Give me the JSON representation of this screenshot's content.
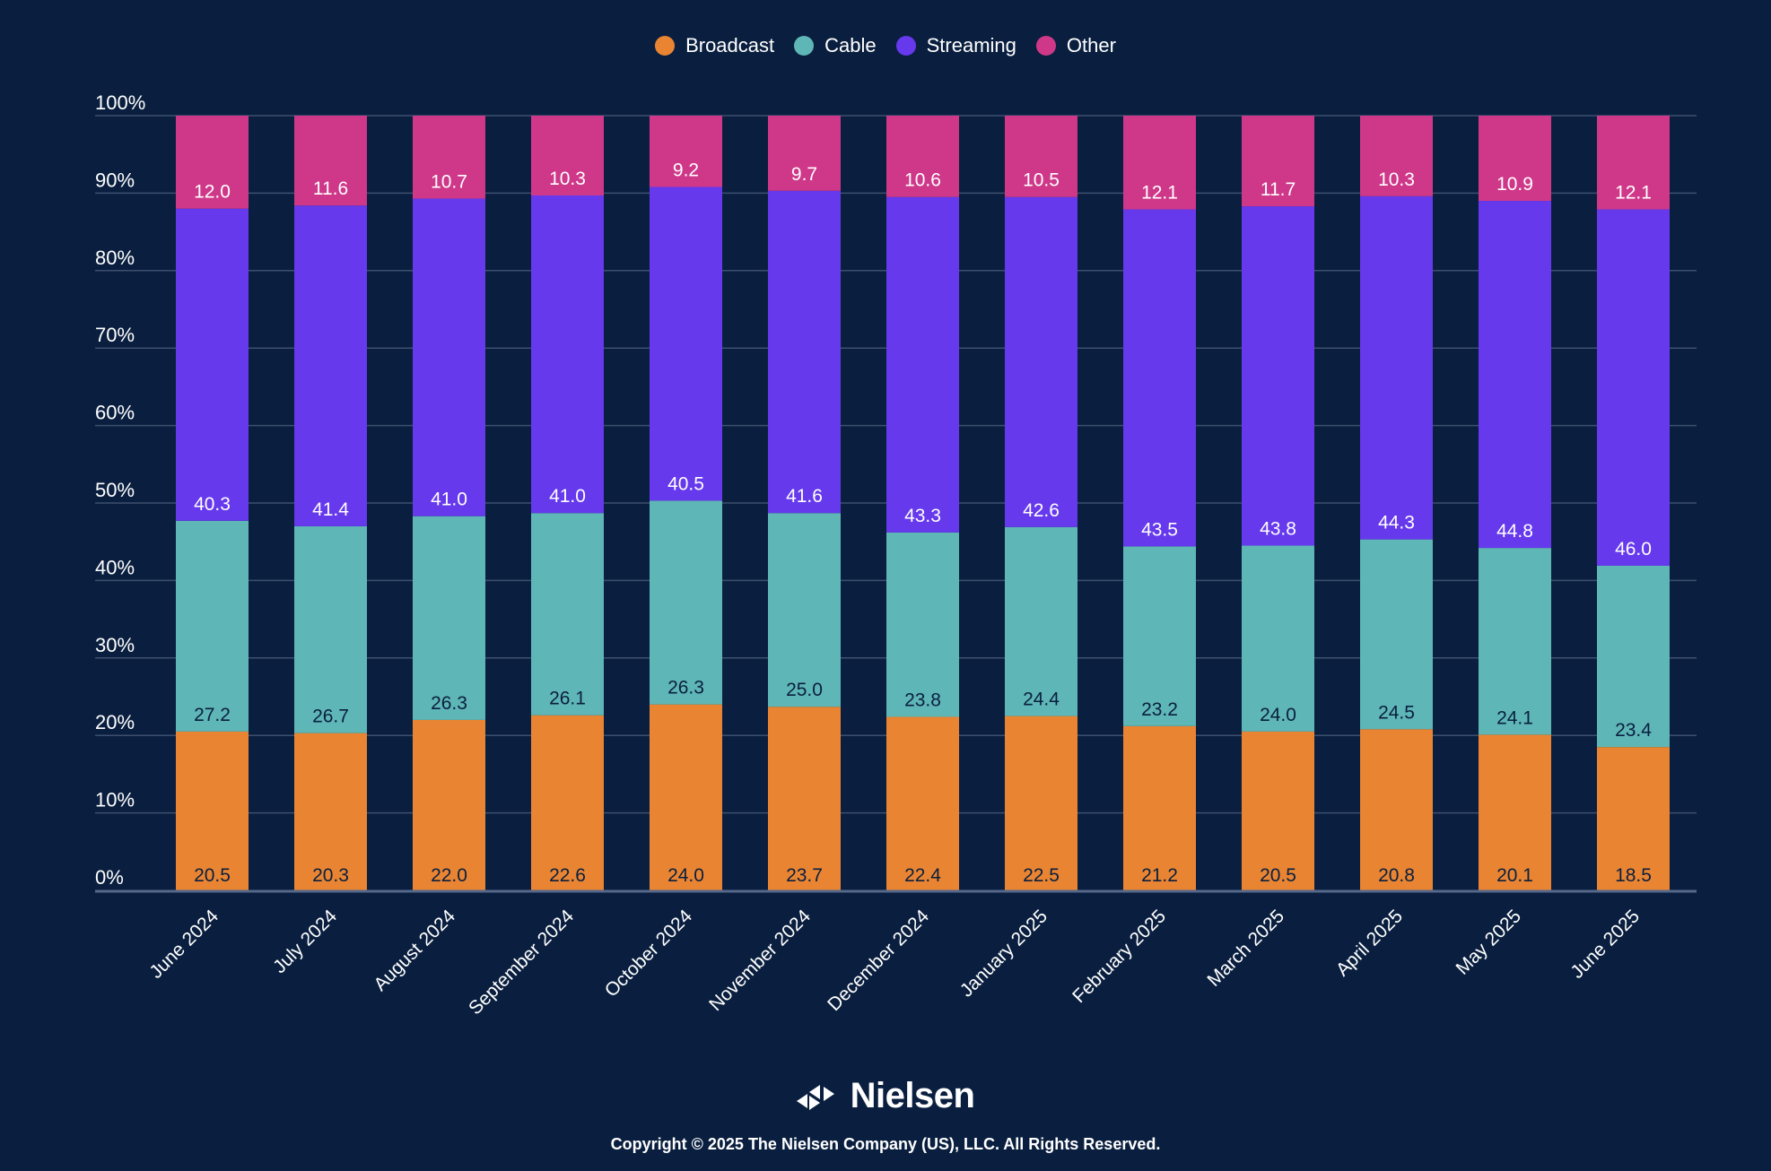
{
  "chart_data": {
    "type": "bar",
    "stacked": true,
    "title": "",
    "xlabel": "",
    "ylabel": "",
    "ylim": [
      0,
      100
    ],
    "y_ticks": [
      "0%",
      "10%",
      "20%",
      "30%",
      "40%",
      "50%",
      "60%",
      "70%",
      "80%",
      "90%",
      "100%"
    ],
    "grid": true,
    "legend_position": "top-center",
    "categories": [
      "June 2024",
      "July 2024",
      "August 2024",
      "September 2024",
      "October 2024",
      "November 2024",
      "December 2024",
      "January 2025",
      "February 2025",
      "March 2025",
      "April 2025",
      "May 2025",
      "June 2025"
    ],
    "series": [
      {
        "name": "Broadcast",
        "color": "#e98532",
        "label_color": "#0a1f3f",
        "values": [
          20.5,
          20.3,
          22.0,
          22.6,
          24.0,
          23.7,
          22.4,
          22.5,
          21.2,
          20.5,
          20.8,
          20.1,
          18.5
        ],
        "labels": [
          "20.5",
          "20.3",
          "22.0",
          "22.6",
          "24.0",
          "23.7",
          "22.4",
          "22.5",
          "21.2",
          "20.5",
          "20.8",
          "20.1",
          "18.5"
        ]
      },
      {
        "name": "Cable",
        "color": "#5fb6b6",
        "label_color": "#0a1f3f",
        "values": [
          27.2,
          26.7,
          26.3,
          26.1,
          26.3,
          25.0,
          23.8,
          24.4,
          23.2,
          24.0,
          24.5,
          24.1,
          23.4
        ],
        "labels": [
          "27.2",
          "26.7",
          "26.3",
          "26.1",
          "26.3",
          "25.0",
          "23.8",
          "24.4",
          "23.2",
          "24.0",
          "24.5",
          "24.1",
          "23.4"
        ]
      },
      {
        "name": "Streaming",
        "color": "#6639ed",
        "label_color": "#ffffff",
        "values": [
          40.3,
          41.4,
          41.0,
          41.0,
          40.5,
          41.6,
          43.3,
          42.6,
          43.5,
          43.8,
          44.3,
          44.8,
          46.0
        ],
        "labels": [
          "40.3",
          "41.4",
          "41.0",
          "41.0",
          "40.5",
          "41.6",
          "43.3",
          "42.6",
          "43.5",
          "43.8",
          "44.3",
          "44.8",
          "46.0"
        ]
      },
      {
        "name": "Other",
        "color": "#cf3889",
        "label_color": "#ffffff",
        "values": [
          12.0,
          11.6,
          10.7,
          10.3,
          9.2,
          9.7,
          10.6,
          10.5,
          12.1,
          11.7,
          10.3,
          10.9,
          12.1
        ],
        "labels": [
          "12.0",
          "11.6",
          "10.7",
          "10.3",
          "9.2",
          "9.7",
          "10.6",
          "10.5",
          "12.1",
          "11.7",
          "10.3",
          "10.9",
          "12.1"
        ]
      }
    ]
  },
  "legend": {
    "items": [
      {
        "label": "Broadcast",
        "color": "#e98532"
      },
      {
        "label": "Cable",
        "color": "#5fb6b6"
      },
      {
        "label": "Streaming",
        "color": "#6639ed"
      },
      {
        "label": "Other",
        "color": "#cf3889"
      }
    ]
  },
  "footer": {
    "brand": "Nielsen",
    "copyright": "Copyright © 2025 The Nielsen Company (US), LLC. All Rights Reserved."
  },
  "theme": {
    "background": "#0a1f3f",
    "gridline": "#3d4f6e",
    "axis_line": "#56688a",
    "text": "#ffffff"
  }
}
